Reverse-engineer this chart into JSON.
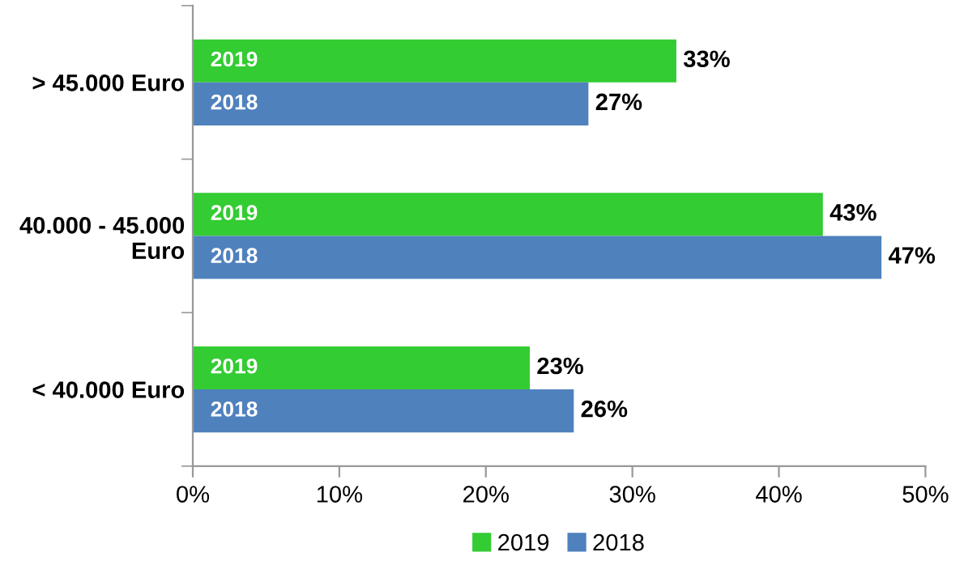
{
  "chart_data": {
    "type": "bar",
    "orientation": "horizontal",
    "categories": [
      "> 45.000 Euro",
      "40.000 - 45.000\nEuro",
      "< 40.000 Euro"
    ],
    "series": [
      {
        "name": "2019",
        "color": "#33cc33",
        "values": [
          33,
          43,
          23
        ],
        "value_labels": [
          "33%",
          "43%",
          "23%"
        ]
      },
      {
        "name": "2018",
        "color": "#4f81bd",
        "values": [
          27,
          47,
          26
        ],
        "value_labels": [
          "27%",
          "47%",
          "26%"
        ]
      }
    ],
    "xlim": [
      0,
      50
    ],
    "xticks": [
      {
        "value": 0,
        "label": "0%"
      },
      {
        "value": 10,
        "label": "10%"
      },
      {
        "value": 20,
        "label": "20%"
      },
      {
        "value": 30,
        "label": "30%"
      },
      {
        "value": 40,
        "label": "40%"
      },
      {
        "value": 50,
        "label": "50%"
      }
    ],
    "grid": false,
    "legend": "bottom"
  }
}
